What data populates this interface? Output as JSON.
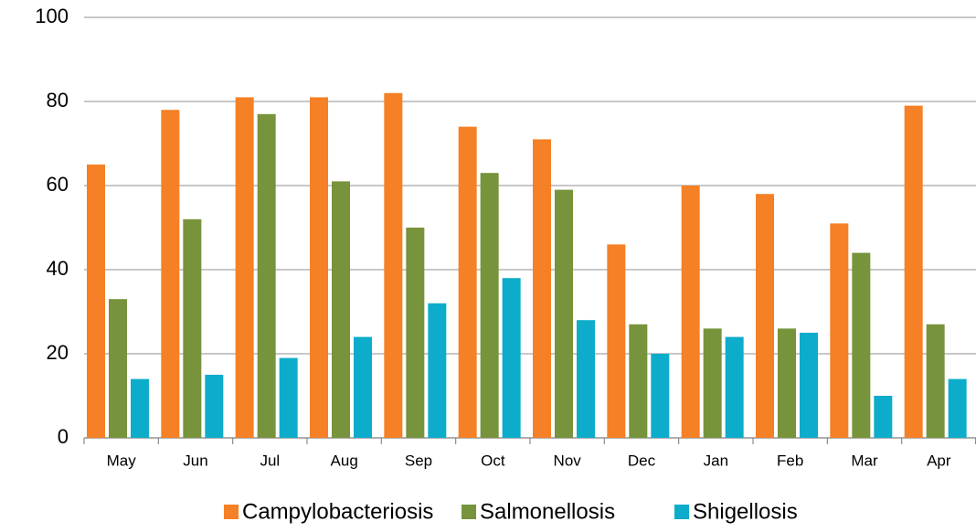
{
  "chart_data": {
    "type": "bar",
    "categories": [
      "May",
      "Jun",
      "Jul",
      "Aug",
      "Sep",
      "Oct",
      "Nov",
      "Dec",
      "Jan",
      "Feb",
      "Mar",
      "Apr"
    ],
    "series": [
      {
        "name": "Campylobacteriosis",
        "color": "#f58025",
        "values": [
          65,
          78,
          81,
          81,
          82,
          74,
          71,
          46,
          60,
          58,
          51,
          79
        ]
      },
      {
        "name": "Salmonellosis",
        "color": "#77933c",
        "values": [
          33,
          52,
          77,
          61,
          50,
          63,
          59,
          27,
          26,
          26,
          44,
          27
        ]
      },
      {
        "name": "Shigellosis",
        "color": "#0eaccb",
        "values": [
          14,
          15,
          19,
          24,
          32,
          38,
          28,
          20,
          24,
          25,
          10,
          14
        ]
      }
    ],
    "ylim": [
      0,
      100
    ],
    "yticks": [
      0,
      20,
      40,
      60,
      80,
      100
    ],
    "grid": true,
    "legend": "bottom"
  }
}
